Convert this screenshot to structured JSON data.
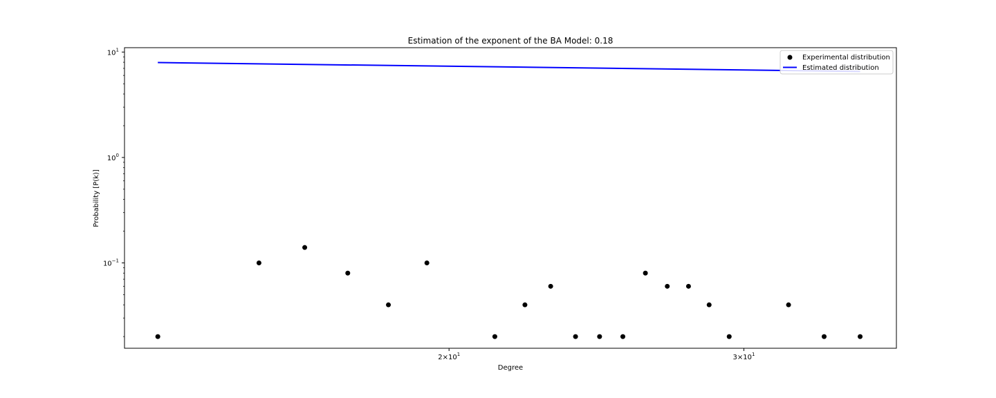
{
  "chart_data": {
    "type": "scatter",
    "title": "Estimation of the exponent of the BA Model:  0.18",
    "xlabel": "Degree",
    "ylabel": "Probability [P(k)]",
    "xscale": "log",
    "yscale": "log",
    "xlim": [
      12.8,
      37.0
    ],
    "ylim": [
      0.0155,
      11.0
    ],
    "grid": false,
    "legend_position": "top-right",
    "x_ticks": [
      {
        "value": 20,
        "base": "2",
        "exp": "1"
      },
      {
        "value": 30,
        "base": "3",
        "exp": "1"
      }
    ],
    "y_ticks": [
      {
        "value": 10,
        "exp": "1"
      },
      {
        "value": 1,
        "exp": "0"
      },
      {
        "value": 0.1,
        "exp": "−1"
      }
    ],
    "series": [
      {
        "name": "Experimental distribution",
        "kind": "scatter",
        "color": "#000000",
        "points": [
          [
            13.4,
            0.02
          ],
          [
            15.4,
            0.1
          ],
          [
            16.4,
            0.14
          ],
          [
            17.4,
            0.08
          ],
          [
            18.4,
            0.04
          ],
          [
            19.4,
            0.1
          ],
          [
            21.3,
            0.02
          ],
          [
            22.2,
            0.04
          ],
          [
            23.0,
            0.06
          ],
          [
            23.8,
            0.02
          ],
          [
            24.6,
            0.02
          ],
          [
            25.4,
            0.02
          ],
          [
            26.2,
            0.08
          ],
          [
            27.0,
            0.06
          ],
          [
            27.8,
            0.06
          ],
          [
            28.6,
            0.04
          ],
          [
            29.4,
            0.02
          ],
          [
            31.9,
            0.04
          ],
          [
            33.5,
            0.02
          ],
          [
            35.2,
            0.02
          ]
        ]
      },
      {
        "name": "Estimated distribution",
        "kind": "line",
        "color": "#0000ff",
        "points": [
          [
            13.4,
            7.95
          ],
          [
            35.2,
            6.55
          ]
        ]
      }
    ]
  }
}
